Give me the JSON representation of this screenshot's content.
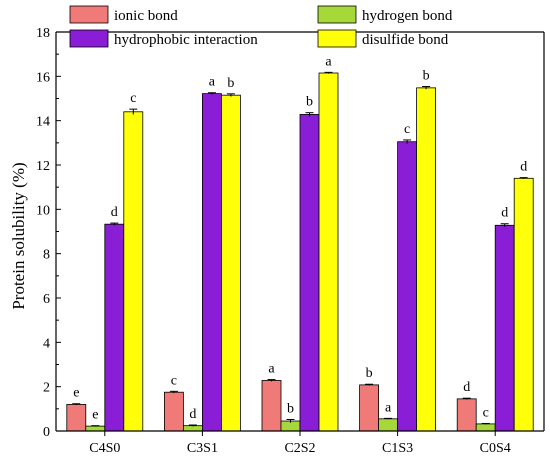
{
  "chart_data": {
    "type": "bar",
    "title": "",
    "xlabel": "",
    "ylabel": "Protein solubility (%)",
    "ylim": [
      0,
      18
    ],
    "yticks": [
      0,
      2,
      4,
      6,
      8,
      10,
      12,
      14,
      16,
      18
    ],
    "categories": [
      "C4S0",
      "C3S1",
      "C2S2",
      "C1S3",
      "C0S4"
    ],
    "legend_position": "top",
    "grid": false,
    "series": [
      {
        "name": "ionic bond",
        "color": "#f07a78",
        "values": [
          1.2,
          1.75,
          2.28,
          2.08,
          1.45
        ],
        "errors": [
          0.03,
          0.04,
          0.04,
          0.03,
          0.03
        ],
        "letters": [
          "e",
          "c",
          "a",
          "b",
          "d"
        ]
      },
      {
        "name": "hydrogen bond",
        "color": "#a6d83a",
        "values": [
          0.22,
          0.24,
          0.45,
          0.55,
          0.32
        ],
        "errors": [
          0.02,
          0.03,
          0.07,
          0.02,
          0.02
        ],
        "letters": [
          "e",
          "d",
          "b",
          "a",
          "c"
        ]
      },
      {
        "name": "hydrophobic interaction",
        "color": "#8a1ed6",
        "values": [
          9.33,
          15.22,
          14.28,
          13.05,
          9.28
        ],
        "errors": [
          0.05,
          0.04,
          0.08,
          0.08,
          0.07
        ],
        "letters": [
          "d",
          "a",
          "b",
          "c",
          "d"
        ]
      },
      {
        "name": "disulfide bond",
        "color": "#ffff0a",
        "values": [
          14.4,
          15.15,
          16.15,
          15.48,
          11.4
        ],
        "errors": [
          0.12,
          0.06,
          0.03,
          0.06,
          0.03
        ],
        "letters": [
          "c",
          "b",
          "a",
          "b",
          "d"
        ]
      }
    ]
  }
}
